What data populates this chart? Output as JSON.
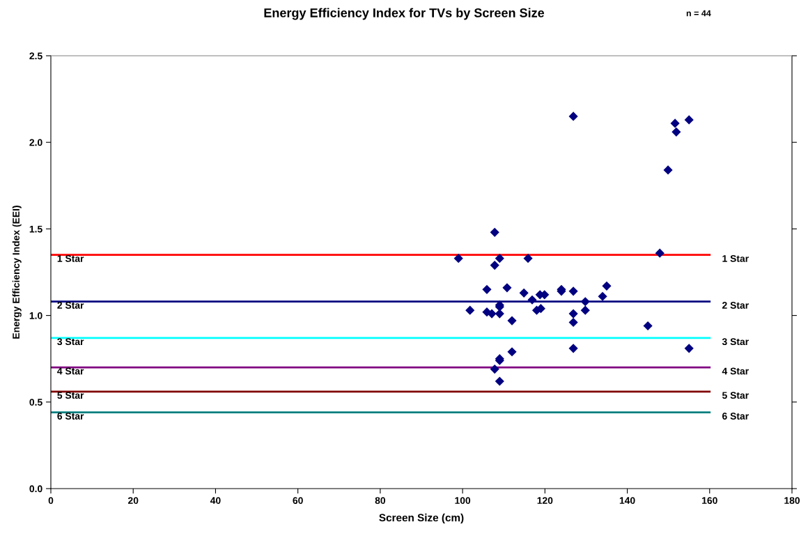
{
  "chart_data": {
    "type": "scatter",
    "title": "Energy Efficiency Index for TVs by Screen Size",
    "subtitle": "n = 44",
    "xlabel": "Screen Size (cm)",
    "ylabel": "Energy Efficiency Index (EEI)",
    "xlim": [
      0,
      180
    ],
    "xticks": [
      0,
      20,
      40,
      60,
      80,
      100,
      120,
      140,
      160,
      180
    ],
    "ylim": [
      0,
      2.5
    ],
    "yticks": [
      {
        "value": 0,
        "label": "0.0"
      },
      {
        "value": 0.5,
        "label": "0.5"
      },
      {
        "value": 1,
        "label": "1.0"
      },
      {
        "value": 1.5,
        "label": "1.5"
      },
      {
        "value": 2,
        "label": "2.0"
      },
      {
        "value": 2.5,
        "label": "2.5"
      }
    ],
    "grid": false,
    "series": [
      {
        "marker": "diamond",
        "color": "#000080",
        "x": [
          99,
          101.8,
          107.8,
          109,
          107.8,
          105.9,
          105.9,
          107.1,
          109,
          109,
          109,
          110.8,
          112,
          112,
          109,
          109,
          107.8,
          109,
          114.9,
          115.9,
          116.9,
          118,
          118.8,
          119,
          119.9,
          124,
          124,
          126.9,
          126.9,
          126.9,
          126.9,
          129.8,
          129.8,
          134,
          135,
          126.9,
          145,
          147.9,
          149.9,
          151.6,
          151.9,
          155,
          155
        ],
        "values": [
          1.33,
          1.03,
          1.48,
          1.33,
          1.29,
          1.15,
          1.02,
          1.01,
          1.06,
          1.05,
          1.01,
          1.16,
          0.97,
          0.79,
          0.75,
          0.74,
          0.69,
          0.62,
          1.13,
          1.33,
          1.09,
          1.03,
          1.12,
          1.04,
          1.12,
          1.15,
          1.14,
          1.14,
          1.01,
          0.96,
          0.81,
          1.08,
          1.03,
          1.11,
          1.17,
          2.15,
          0.94,
          1.36,
          1.84,
          2.11,
          2.06,
          2.13,
          0.81
        ]
      },
      {
        "type": "line",
        "name": "1 Star",
        "color": "#ff0000",
        "x": [
          0,
          160
        ],
        "values": [
          1.35,
          1.35
        ]
      },
      {
        "type": "line",
        "name": "2 Star",
        "color": "#000080",
        "x": [
          0,
          160
        ],
        "values": [
          1.08,
          1.08
        ]
      },
      {
        "type": "line",
        "name": "3 Star",
        "color": "#00ffff",
        "x": [
          0,
          160
        ],
        "values": [
          0.87,
          0.87
        ]
      },
      {
        "type": "line",
        "name": "4 Star",
        "color": "#800080",
        "x": [
          0,
          160
        ],
        "values": [
          0.7,
          0.7
        ]
      },
      {
        "type": "line",
        "name": "5 Star",
        "color": "#800000",
        "x": [
          0,
          160
        ],
        "values": [
          0.56,
          0.56
        ]
      },
      {
        "type": "line",
        "name": "6 Star",
        "color": "#008080",
        "x": [
          0,
          160
        ],
        "values": [
          0.44,
          0.44
        ]
      }
    ]
  }
}
